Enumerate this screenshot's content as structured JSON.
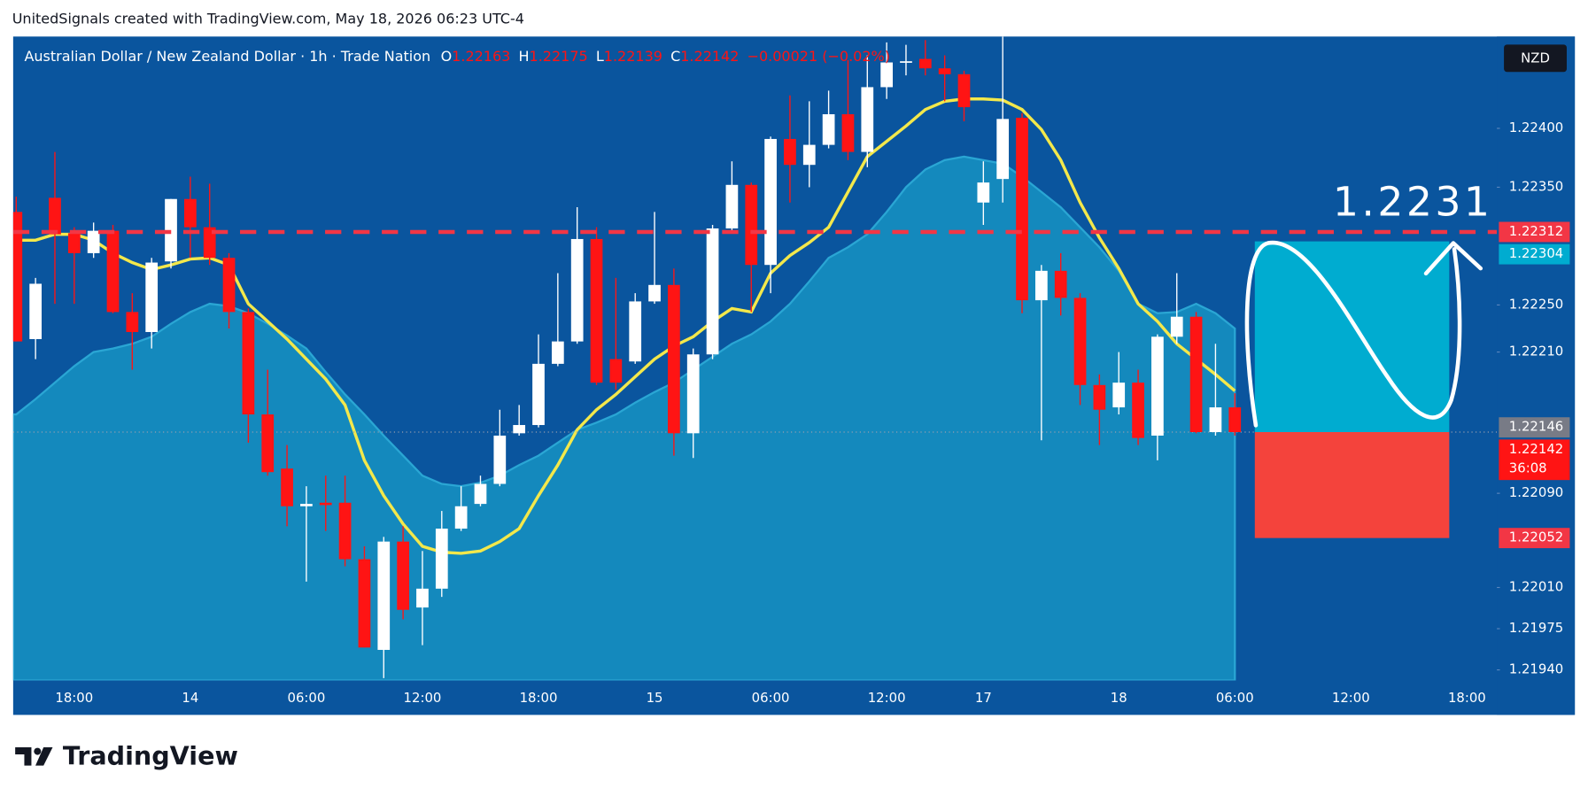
{
  "header": "UnitedSignals created with TradingView.com, May 18, 2026 06:23 UTC-4",
  "footer": "TradingView",
  "chart_data": {
    "type": "candlestick",
    "title": "Australian Dollar / New Zealand Dollar · 1h · Trade Nation",
    "legend": [
      {
        "key": "O",
        "value": "1.22163"
      },
      {
        "key": "H",
        "value": "1.22175"
      },
      {
        "key": "L",
        "value": "1.22139"
      },
      {
        "key": "C",
        "value": "1.22142"
      }
    ],
    "change": "−0.00021 (−0.02%)",
    "currency": "NZD",
    "annotation": "1.2231",
    "categories": [
      null,
      null,
      null,
      "18:00",
      null,
      null,
      null,
      null,
      null,
      "14",
      null,
      null,
      null,
      null,
      null,
      "06:00",
      null,
      null,
      null,
      null,
      null,
      "12:00",
      null,
      null,
      null,
      null,
      null,
      "18:00",
      null,
      null,
      null,
      null,
      null,
      "15",
      null,
      null,
      null,
      null,
      null,
      "06:00",
      null,
      null,
      null,
      null,
      null,
      "12:00",
      null,
      null,
      null,
      null,
      "17",
      null,
      null,
      null,
      null,
      null,
      null,
      "18",
      null,
      null,
      null,
      null,
      null,
      "06:00",
      null,
      null,
      null,
      null,
      null,
      "12:00",
      null,
      null,
      null,
      null,
      null,
      "18:00",
      null
    ],
    "open": [
      1.22329,
      1.22221,
      1.22341,
      1.22311,
      1.22294,
      1.22313,
      1.22244,
      1.22227,
      1.22287,
      1.2234,
      1.22316,
      1.2229,
      1.22244,
      1.22157,
      1.22111,
      1.22079,
      1.22082,
      1.22082,
      1.22034,
      1.21957,
      1.22049,
      1.21993,
      1.22009,
      1.2206,
      1.22081,
      1.22098,
      1.22141,
      1.22148,
      1.222,
      1.22219,
      1.22306,
      1.22204,
      1.22202,
      1.22253,
      1.22267,
      1.22141,
      1.22208,
      1.22315,
      1.22352,
      1.22284,
      1.22391,
      1.22369,
      1.22386,
      1.22412,
      1.2238,
      1.22435,
      1.22456,
      1.22459,
      1.22451,
      1.22446,
      1.22337,
      1.22357,
      1.22409,
      1.22254,
      1.22279,
      1.22256,
      1.22182,
      1.22163,
      1.22184,
      1.22139,
      1.22223,
      1.2224,
      1.22142,
      1.22163,
      null,
      null,
      null,
      null,
      null,
      null,
      null,
      null,
      null,
      null,
      null,
      null,
      null
    ],
    "high": [
      1.22342,
      1.22273,
      1.2238,
      1.22316,
      1.2232,
      1.22318,
      1.2226,
      1.2229,
      1.2234,
      1.22359,
      1.22353,
      1.22294,
      1.22247,
      1.22195,
      1.22131,
      1.22096,
      1.22105,
      1.22105,
      1.22045,
      1.22053,
      1.22062,
      1.22041,
      1.22075,
      1.22096,
      1.22105,
      1.22161,
      1.22165,
      1.22225,
      1.22277,
      1.22333,
      1.22316,
      1.22273,
      1.2226,
      1.22329,
      1.22281,
      1.22213,
      1.22318,
      1.22372,
      1.22354,
      1.22393,
      1.22428,
      1.22423,
      1.22432,
      1.22458,
      1.22462,
      1.22473,
      1.22471,
      1.22475,
      1.22462,
      1.22449,
      1.22372,
      1.22478,
      1.22413,
      1.22284,
      1.22294,
      1.2226,
      1.22191,
      1.2221,
      1.22195,
      1.22225,
      1.22277,
      1.22244,
      1.22217,
      1.22175,
      null,
      null,
      null,
      null,
      null,
      null,
      null,
      null,
      null,
      null,
      null,
      null,
      null
    ],
    "low": [
      1.22219,
      1.22204,
      1.22251,
      1.22251,
      1.2229,
      1.22243,
      1.22195,
      1.22213,
      1.22281,
      1.2229,
      1.22284,
      1.2223,
      1.22133,
      1.22105,
      1.22062,
      1.22015,
      1.22058,
      1.22028,
      1.21959,
      1.21933,
      1.21983,
      1.21961,
      1.22002,
      1.22058,
      1.22079,
      1.22096,
      1.22139,
      1.22146,
      1.22198,
      1.22217,
      1.22182,
      1.22178,
      1.222,
      1.22251,
      1.22122,
      1.2212,
      1.22204,
      1.22311,
      1.22244,
      1.2226,
      1.22337,
      1.2235,
      1.22383,
      1.22373,
      1.22367,
      1.22425,
      1.22445,
      1.22445,
      1.22423,
      1.22406,
      1.22318,
      1.22337,
      1.22243,
      1.22135,
      1.22241,
      1.22165,
      1.22131,
      1.22157,
      1.22131,
      1.22118,
      1.22217,
      1.22141,
      1.22139,
      1.22139,
      null,
      null,
      null,
      null,
      null,
      null,
      null,
      null,
      null,
      null,
      null,
      null,
      null
    ],
    "close": [
      1.22219,
      1.22268,
      1.2231,
      1.22294,
      1.22313,
      1.22244,
      1.22227,
      1.22286,
      1.2234,
      1.22316,
      1.2229,
      1.22244,
      1.22157,
      1.22108,
      1.22079,
      1.22081,
      1.2208,
      1.22034,
      1.21959,
      1.22049,
      1.21991,
      1.22009,
      1.2206,
      1.22079,
      1.22098,
      1.22139,
      1.22148,
      1.222,
      1.22219,
      1.22306,
      1.22184,
      1.22184,
      1.22253,
      1.22267,
      1.22141,
      1.22208,
      1.22315,
      1.22352,
      1.22284,
      1.22391,
      1.22369,
      1.22386,
      1.22412,
      1.2238,
      1.22435,
      1.22456,
      1.22457,
      1.22451,
      1.22446,
      1.22418,
      1.22354,
      1.22408,
      1.22254,
      1.22279,
      1.22256,
      1.22182,
      1.22161,
      1.22184,
      1.22137,
      1.22223,
      1.2224,
      1.22142,
      1.22163,
      1.22142,
      null,
      null,
      null,
      null,
      null,
      null,
      null,
      null,
      null,
      null,
      null,
      null,
      null
    ],
    "up_color": "#ffffff",
    "down_color": "#ff1414",
    "overlays": [
      {
        "type": "area",
        "color": "#1489bd",
        "values": [
          1.22157,
          1.2217,
          1.22184,
          1.22198,
          1.2221,
          1.22213,
          1.22217,
          1.22223,
          1.22234,
          1.22244,
          1.22251,
          1.22249,
          1.22243,
          1.22234,
          1.22224,
          1.22213,
          1.22193,
          1.22174,
          1.22157,
          1.22139,
          1.22122,
          1.22105,
          1.22098,
          1.22096,
          1.22099,
          1.22105,
          1.22114,
          1.22122,
          1.22133,
          1.22144,
          1.2215,
          1.22157,
          1.22167,
          1.22176,
          1.22184,
          1.22195,
          1.22206,
          1.22217,
          1.22225,
          1.22236,
          1.22251,
          1.2227,
          1.2229,
          1.22299,
          1.2231,
          1.22329,
          1.2235,
          1.22365,
          1.22373,
          1.22376,
          1.22373,
          1.2237,
          1.22359,
          1.22346,
          1.22333,
          1.22316,
          1.22299,
          1.22279,
          1.22251,
          1.22243,
          1.22244,
          1.22251,
          1.22243,
          1.2223,
          null,
          null,
          null,
          null,
          null,
          null,
          null,
          null,
          null,
          null,
          null,
          null,
          null
        ]
      },
      {
        "type": "line",
        "color": "#f3e84b",
        "values": [
          1.22305,
          1.22305,
          1.2231,
          1.2231,
          1.22305,
          1.22294,
          1.22286,
          1.2228,
          1.22284,
          1.22289,
          1.2229,
          1.22284,
          1.22251,
          1.22236,
          1.22221,
          1.22204,
          1.22187,
          1.22165,
          1.22118,
          1.22088,
          1.22064,
          1.22045,
          1.2204,
          1.22039,
          1.22041,
          1.22049,
          1.2206,
          1.22088,
          1.22114,
          1.22144,
          1.22161,
          1.22174,
          1.22189,
          1.22204,
          1.22215,
          1.22223,
          1.22236,
          1.22247,
          1.22244,
          1.22277,
          1.22292,
          1.22303,
          1.22316,
          1.22346,
          1.22376,
          1.22389,
          1.22402,
          1.22416,
          1.22423,
          1.22425,
          1.22425,
          1.22424,
          1.22416,
          1.22399,
          1.22373,
          1.22337,
          1.22307,
          1.22281,
          1.22251,
          1.22236,
          1.22217,
          1.22204,
          1.22191,
          1.22177,
          null,
          null,
          null,
          null,
          null,
          null,
          null,
          null,
          null,
          null,
          null,
          null,
          null
        ]
      }
    ],
    "position": {
      "target": 1.22304,
      "entry": 1.22142,
      "stop": 1.22052,
      "target_color": "#00acd0",
      "stop_color": "#f4433c"
    },
    "price_labels": [
      {
        "value": 1.22312,
        "label": "1.22312",
        "color": "#f23645"
      },
      {
        "value": 1.22304,
        "label": "1.22304",
        "color": "#00acd0"
      },
      {
        "value": 1.22146,
        "label": "1.22146",
        "color": "#787b86"
      },
      {
        "value": 1.22142,
        "label": "1.22142",
        "countdown": "36:08",
        "color": "#ff1414"
      },
      {
        "value": 1.22052,
        "label": "1.22052",
        "color": "#f23645"
      }
    ],
    "ylim": [
      1.21931,
      1.22478
    ],
    "yticks": [
      {
        "value": 1.224,
        "label": "1.22400"
      },
      {
        "value": 1.2235,
        "label": "1.22350"
      },
      {
        "value": 1.2225,
        "label": "1.22250"
      },
      {
        "value": 1.2221,
        "label": "1.22210"
      },
      {
        "value": 1.2209,
        "label": "1.22090"
      },
      {
        "value": 1.2201,
        "label": "1.22010"
      },
      {
        "value": 1.21975,
        "label": "1.21975"
      },
      {
        "value": 1.2194,
        "label": "1.21940"
      }
    ]
  }
}
